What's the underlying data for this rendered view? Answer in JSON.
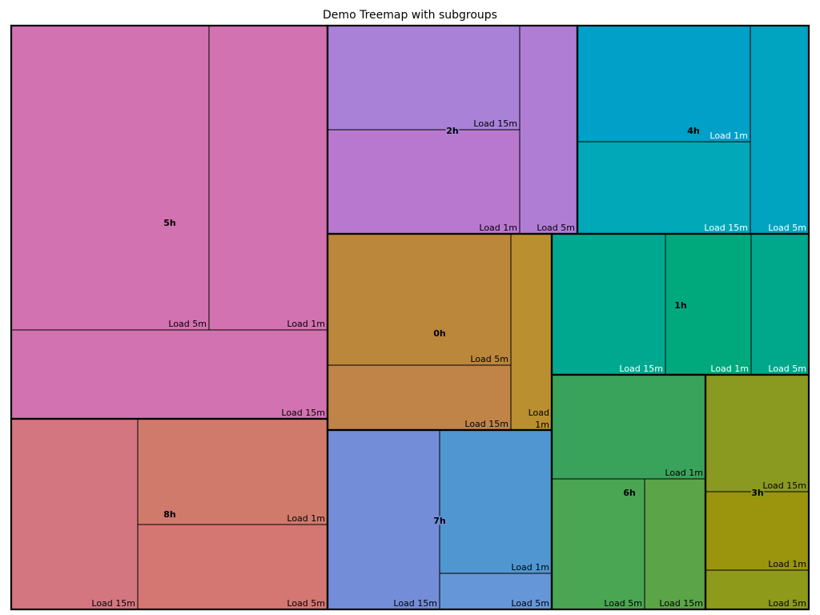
{
  "chart_data": {
    "type": "treemap",
    "title": "Demo Treemap with subgroups",
    "groups": [
      {
        "name": "5h",
        "color": "#d372b1",
        "children": [
          {
            "label": "Load 5m",
            "color": "#d372b1"
          },
          {
            "label": "Load 1m",
            "color": "#d372b1"
          },
          {
            "label": "Load 15m",
            "color": "#d372b1"
          }
        ]
      },
      {
        "name": "2h",
        "color": "#ab7ed8",
        "children": [
          {
            "label": "Load 15m",
            "color": "#a982d8"
          },
          {
            "label": "Load 1m",
            "color": "#b978d0"
          },
          {
            "label": "Load 5m",
            "color": "#b07dd4"
          }
        ]
      },
      {
        "name": "4h",
        "color": "#00a0c0",
        "children": [
          {
            "label": "Load 1m",
            "color": "#00a0c8"
          },
          {
            "label": "Load 15m",
            "color": "#00a8b8"
          },
          {
            "label": "Load 5m",
            "color": "#00a4c0"
          }
        ]
      },
      {
        "name": "0h",
        "color": "#bd863e",
        "children": [
          {
            "label": "Load 5m",
            "color": "#bb873b"
          },
          {
            "label": "Load 15m",
            "color": "#c08448"
          },
          {
            "label": "Load 1m",
            "color": "#b98f30"
          }
        ]
      },
      {
        "name": "1h",
        "color": "#00a88c",
        "children": [
          {
            "label": "Load 15m",
            "color": "#00a890"
          },
          {
            "label": "Load 1m",
            "color": "#00a97c"
          },
          {
            "label": "Load 5m",
            "color": "#00a88b"
          }
        ]
      },
      {
        "name": "8h",
        "color": "#d27474",
        "children": [
          {
            "label": "Load 15m",
            "color": "#d47680"
          },
          {
            "label": "Load 1m",
            "color": "#d07a6c"
          },
          {
            "label": "Load 5m",
            "color": "#d47672"
          }
        ]
      },
      {
        "name": "7h",
        "color": "#6a90d8",
        "children": [
          {
            "label": "Load 15m",
            "color": "#748dd8"
          },
          {
            "label": "Load 1m",
            "color": "#5096d0"
          },
          {
            "label": "Load 5m",
            "color": "#6596d8"
          }
        ]
      },
      {
        "name": "6h",
        "color": "#4aa555",
        "children": [
          {
            "label": "Load 1m",
            "color": "#3aa35b"
          },
          {
            "label": "Load 5m",
            "color": "#4aa652"
          },
          {
            "label": "Load 15m",
            "color": "#5ba447"
          }
        ]
      },
      {
        "name": "3h",
        "color": "#8d9a1a",
        "children": [
          {
            "label": "Load 15m",
            "color": "#8a9a20"
          },
          {
            "label": "Load 1m",
            "color": "#9a950c"
          },
          {
            "label": "Load 5m",
            "color": "#8d9a1a"
          }
        ]
      }
    ]
  }
}
